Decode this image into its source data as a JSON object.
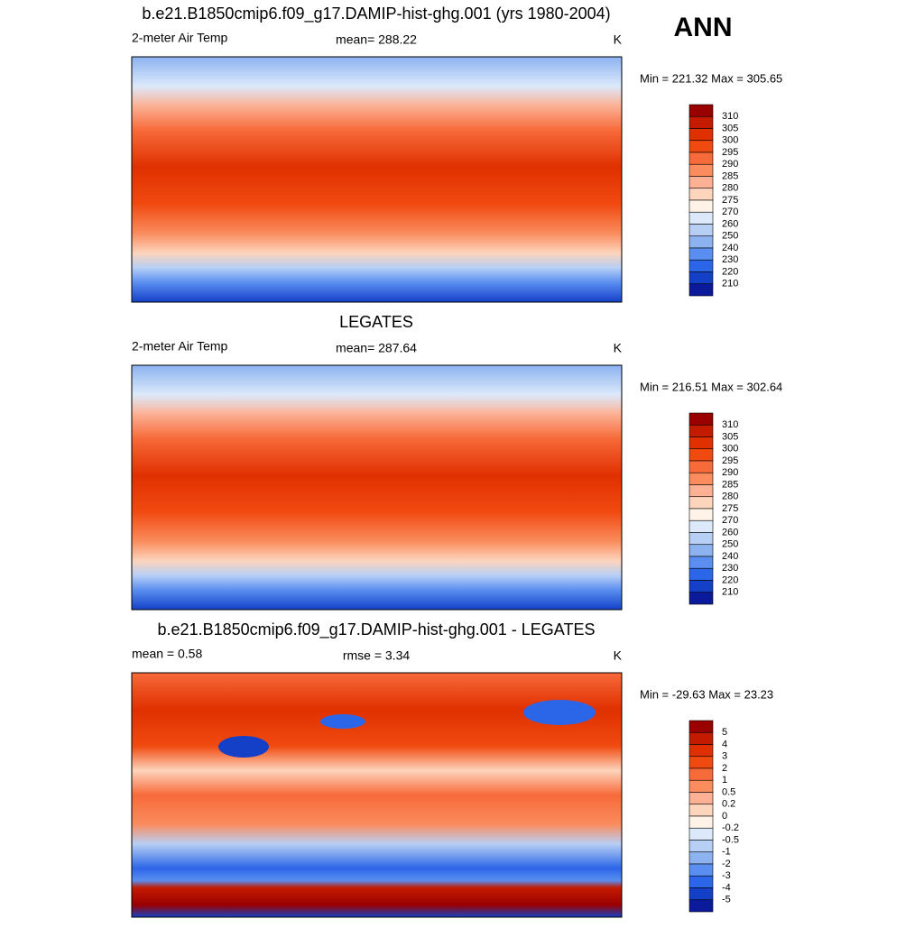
{
  "main_title": "ANN",
  "panels": [
    {
      "title": "b.e21.B1850cmip6.f09_g17.DAMIP-hist-ghg.001 (yrs 1980-2004)",
      "left_label": "2-meter Air Temp",
      "center_label": "mean= 288.22",
      "right_label": "K",
      "minmax": "Min = 221.32 Max = 305.65",
      "colorbar": {
        "labels": [
          "310",
          "305",
          "300",
          "295",
          "290",
          "285",
          "280",
          "275",
          "270",
          "260",
          "250",
          "240",
          "230",
          "220",
          "210"
        ],
        "colors": [
          "#990000",
          "#c41a00",
          "#e03000",
          "#f04a10",
          "#f76a3a",
          "#fa8c5e",
          "#fcb094",
          "#fdd4bc",
          "#fff2e6",
          "#dce9fb",
          "#b7cff5",
          "#8cb2f0",
          "#5a8ef0",
          "#2c66e8",
          "#1440c8",
          "#0a1a9a"
        ]
      }
    },
    {
      "title": "LEGATES",
      "left_label": "2-meter Air Temp",
      "center_label": "mean= 287.64",
      "right_label": "K",
      "minmax": "Min = 216.51 Max = 302.64",
      "colorbar": {
        "labels": [
          "310",
          "305",
          "300",
          "295",
          "290",
          "285",
          "280",
          "275",
          "270",
          "260",
          "250",
          "240",
          "230",
          "220",
          "210"
        ],
        "colors": [
          "#990000",
          "#c41a00",
          "#e03000",
          "#f04a10",
          "#f76a3a",
          "#fa8c5e",
          "#fcb094",
          "#fdd4bc",
          "#fff2e6",
          "#dce9fb",
          "#b7cff5",
          "#8cb2f0",
          "#5a8ef0",
          "#2c66e8",
          "#1440c8",
          "#0a1a9a"
        ]
      }
    },
    {
      "title": "b.e21.B1850cmip6.f09_g17.DAMIP-hist-ghg.001 - LEGATES",
      "left_label": "mean =   0.58",
      "center_label": "rmse =   3.34",
      "right_label": "K",
      "minmax": "Min = -29.63 Max =  23.23",
      "colorbar": {
        "labels": [
          "5",
          "4",
          "3",
          "2",
          "1",
          "0.5",
          "0.2",
          "0",
          "-0.2",
          "-0.5",
          "-1",
          "-2",
          "-3",
          "-4",
          "-5"
        ],
        "colors": [
          "#990000",
          "#c41a00",
          "#e03000",
          "#f04a10",
          "#f76a3a",
          "#fa8c5e",
          "#fcb094",
          "#fdd4bc",
          "#fff2e6",
          "#dce9fb",
          "#b7cff5",
          "#8cb2f0",
          "#5a8ef0",
          "#2c66e8",
          "#1440c8",
          "#0a1a9a"
        ]
      }
    }
  ]
}
